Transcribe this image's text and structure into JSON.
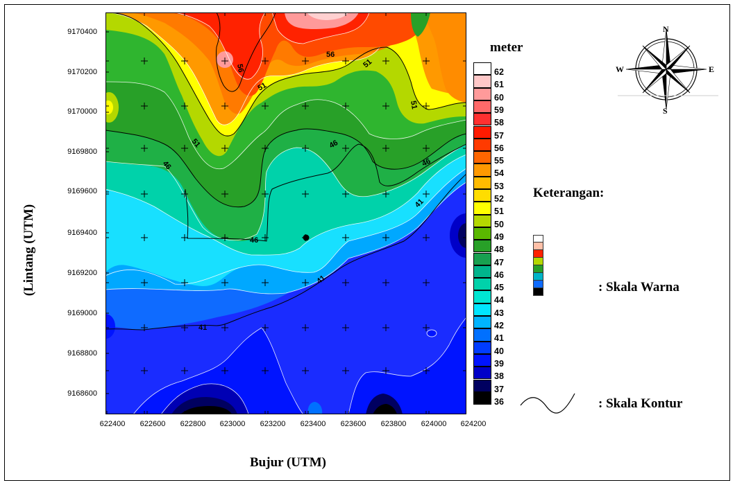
{
  "x_axis": {
    "title": "Bujur (UTM)",
    "ticks": [
      "622400",
      "622600",
      "622800",
      "623000",
      "623200",
      "623400",
      "623600",
      "623800",
      "624000",
      "624200"
    ]
  },
  "y_axis": {
    "title": "(Lintang (UTM)",
    "ticks": [
      "9170400",
      "9170200",
      "9170000",
      "9169800",
      "9169600",
      "9169400",
      "9169200",
      "9169000",
      "9168800",
      "9168600"
    ]
  },
  "legend": {
    "unit": "meter",
    "heading": "Keterangan:",
    "color_scale_label": ": Skala Warna",
    "contour_scale_label": ": Skala Kontur"
  },
  "compass": {
    "n": "N",
    "s": "S",
    "e": "E",
    "w": "W"
  },
  "colorbar": {
    "levels": [
      "62",
      "61",
      "60",
      "59",
      "58",
      "57",
      "56",
      "55",
      "54",
      "53",
      "52",
      "51",
      "50",
      "49",
      "48",
      "47",
      "46",
      "45",
      "44",
      "43",
      "42",
      "41",
      "40",
      "39",
      "38",
      "37",
      "36"
    ],
    "colors": [
      "#ffffff",
      "#ffc8c8",
      "#ff9a9a",
      "#ff6a6a",
      "#ff3030",
      "#ff1a00",
      "#ff3a00",
      "#ff6600",
      "#ff9900",
      "#ffbb00",
      "#ffdd00",
      "#ffff00",
      "#b4d800",
      "#5ab800",
      "#28a028",
      "#18a050",
      "#00b48c",
      "#00d2aa",
      "#00e6d2",
      "#00e6ff",
      "#00b4ff",
      "#0070ff",
      "#003cff",
      "#0014ff",
      "#0000c8",
      "#000060",
      "#000000"
    ]
  },
  "contour_labels": [
    "56",
    "56",
    "51",
    "51",
    "51",
    "51",
    "46",
    "46",
    "46",
    "46",
    "41",
    "41",
    "41"
  ],
  "colors": {
    "deep_blue": "#0a1aff",
    "dark_navy": "#000050",
    "cyan": "#00e6ff",
    "teal": "#00d2aa",
    "green": "#1aa046",
    "yellow": "#ffff00",
    "orange": "#ff8800",
    "red": "#ff2a00",
    "pink": "#ff9a9a"
  }
}
